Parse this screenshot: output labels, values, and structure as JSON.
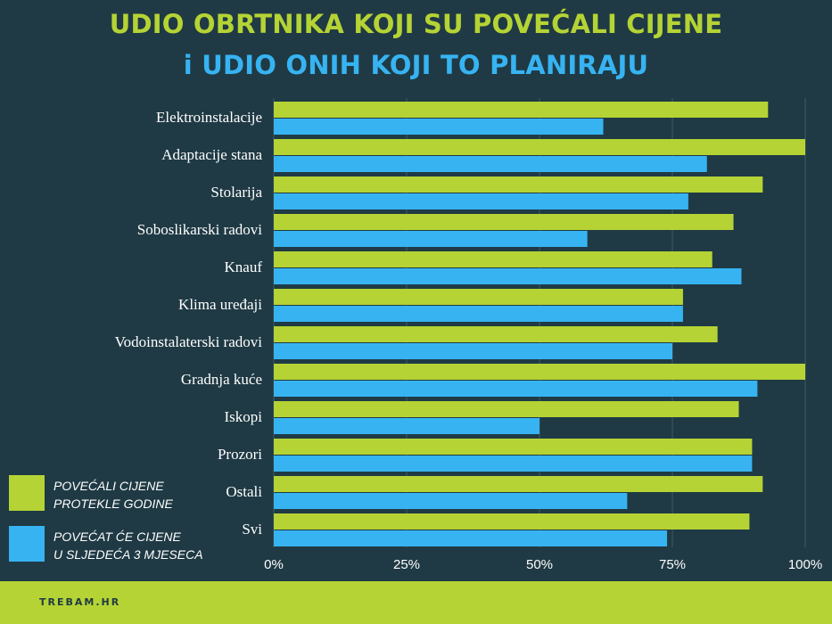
{
  "title_line1": "UDIO OBRTNIKA KOJI SU POVEĆALI CIJENE",
  "title_line2": "i UDIO ONIH KOJI TO PLANIRAJU",
  "colors": {
    "background": "#1f3a44",
    "green": "#b5d334",
    "blue": "#37b3f2",
    "text": "#ffffff",
    "grid": "#3d5963"
  },
  "legend": [
    {
      "line1": "POVEĆALI CIJENE",
      "line2": "PROTEKLE GODINE",
      "color": "#b5d334"
    },
    {
      "line1": "POVEĆAT ĆE CIJENE",
      "line2": "U SLJEDEĆA 3 MJESECA",
      "color": "#37b3f2"
    }
  ],
  "footer": {
    "text": "TREBAM.HR",
    "color": "#b5d334"
  },
  "chart_data": {
    "type": "bar",
    "orientation": "horizontal",
    "categories": [
      "Elektroinstalacije",
      "Adaptacije stana",
      "Stolarija",
      "Soboslikarski radovi",
      "Knauf",
      "Klima uređaji",
      "Vodoinstalaterski radovi",
      "Gradnja kuće",
      "Iskopi",
      "Prozori",
      "Ostali",
      "Svi"
    ],
    "series": [
      {
        "name": "POVEĆALI CIJENE PROTEKLE GODINE",
        "values": [
          93,
          100,
          92,
          86.5,
          82.5,
          77,
          83.5,
          100,
          87.5,
          90,
          92,
          89.5
        ]
      },
      {
        "name": "POVEĆAT ĆE CIJENE U SLJEDEĆA 3 MJESECA",
        "values": [
          62,
          81.5,
          78,
          59,
          88,
          77,
          75,
          91,
          50,
          90,
          66.5,
          74
        ]
      }
    ],
    "xlim": [
      0,
      100
    ],
    "xticks": [
      "0%",
      "25%",
      "50%",
      "75%",
      "100%"
    ],
    "grid": true
  }
}
